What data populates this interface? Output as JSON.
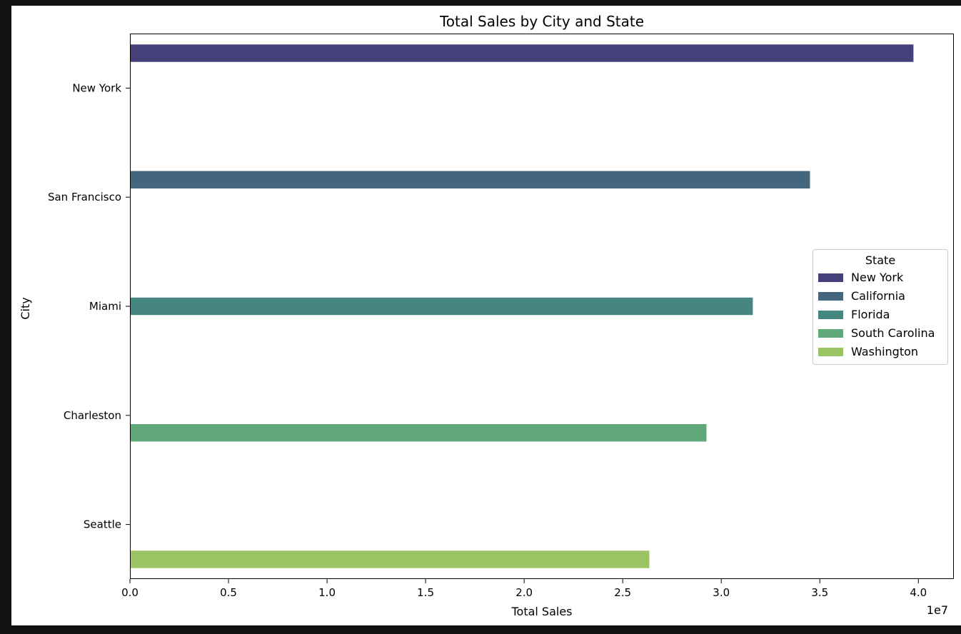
{
  "chart_data": {
    "type": "bar",
    "orientation": "horizontal",
    "title": "Total Sales by City and State",
    "xlabel": "Total Sales",
    "ylabel": "City",
    "x_offset_label": "1e7",
    "xlim": [
      0,
      4.18
    ],
    "x_ticks": [
      "0.0",
      "0.5",
      "1.0",
      "1.5",
      "2.0",
      "2.5",
      "3.0",
      "3.5",
      "4.0"
    ],
    "categories": [
      "New York",
      "San Francisco",
      "Miami",
      "Charleston",
      "Seattle"
    ],
    "series": [
      {
        "name": "New York",
        "color": "#46407a",
        "values": [
          3.975,
          null,
          null,
          null,
          null
        ]
      },
      {
        "name": "California",
        "color": "#43657e",
        "values": [
          null,
          3.45,
          null,
          null,
          null
        ]
      },
      {
        "name": "Florida",
        "color": "#468680",
        "values": [
          null,
          null,
          3.16,
          null,
          null
        ]
      },
      {
        "name": "South Carolina",
        "color": "#60a77a",
        "values": [
          null,
          null,
          null,
          2.925,
          null
        ]
      },
      {
        "name": "Washington",
        "color": "#9dc464",
        "values": [
          null,
          null,
          null,
          null,
          2.635
        ]
      }
    ],
    "legend": {
      "title": "State",
      "placement": "center-right"
    },
    "grid": false
  }
}
